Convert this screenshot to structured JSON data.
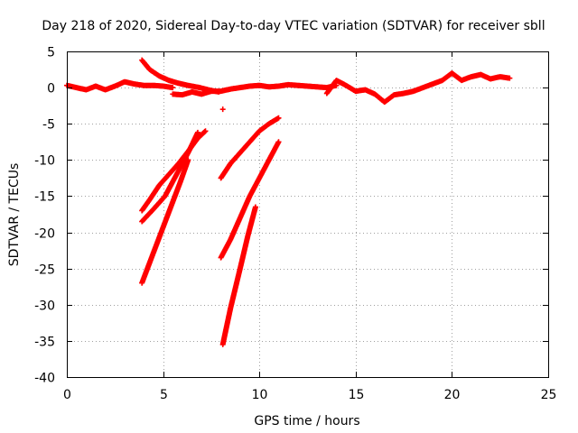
{
  "chart_data": {
    "type": "scatter",
    "title": "Day 218 of 2020, Sidereal Day-to-day VTEC variation (SDTVAR) for receiver sbll",
    "xlabel": "GPS time / hours",
    "ylabel": "SDTVAR / TECUs",
    "xlim": [
      0,
      25
    ],
    "ylim": [
      -40,
      5
    ],
    "xticks": [
      0,
      5,
      10,
      15,
      20,
      25
    ],
    "yticks": [
      5,
      0,
      -5,
      -10,
      -15,
      -20,
      -25,
      -30,
      -35,
      -40
    ],
    "xtick_labels": [
      "0",
      "5",
      "10",
      "15",
      "20",
      "25"
    ],
    "ytick_labels": [
      "5",
      "0",
      "-5",
      "-10",
      "-15",
      "-20",
      "-25",
      "-30",
      "-35",
      "-40"
    ],
    "grid": true,
    "marker": "plus",
    "color": "#ff0000",
    "series": [
      {
        "segments": [
          {
            "x": [
              0.0,
              0.5,
              1.0,
              1.5,
              2.0,
              2.5,
              3.0,
              3.5,
              4.0,
              4.5,
              5.0,
              5.5
            ],
            "y": [
              0.3,
              0.0,
              -0.3,
              0.2,
              -0.3,
              0.2,
              0.8,
              0.5,
              0.3,
              0.3,
              0.2,
              0.0
            ]
          },
          {
            "x": [
              5.5,
              6.0,
              6.5,
              7.0,
              7.5,
              8.0,
              8.5,
              9.0,
              9.5,
              10.0,
              10.5,
              11.0,
              11.5,
              12.0,
              12.5,
              13.0,
              13.5,
              14.0
            ],
            "y": [
              -0.9,
              -1.0,
              -0.6,
              -0.9,
              -0.5,
              -0.5,
              -0.2,
              0.0,
              0.2,
              0.3,
              0.1,
              0.2,
              0.4,
              0.3,
              0.2,
              0.1,
              0.0,
              0.3
            ]
          },
          {
            "x": [
              13.5,
              14.0,
              14.5,
              15.0,
              15.5,
              16.0,
              16.5,
              17.0,
              17.5,
              18.0,
              18.5,
              19.0,
              19.5,
              20.0,
              20.5,
              21.0,
              21.5,
              22.0,
              22.5,
              23.0
            ],
            "y": [
              -0.8,
              1.0,
              0.3,
              -0.5,
              -0.3,
              -0.9,
              -2.0,
              -1.0,
              -0.8,
              -0.5,
              0.0,
              0.5,
              1.0,
              2.0,
              1.0,
              1.5,
              1.8,
              1.2,
              1.5,
              1.3
            ]
          },
          {
            "x": [
              3.9,
              4.3,
              4.8,
              5.3,
              5.8,
              6.3,
              6.9,
              7.5,
              7.9
            ],
            "y": [
              3.8,
              2.5,
              1.6,
              1.0,
              0.6,
              0.3,
              0.0,
              -0.4,
              -0.6
            ]
          },
          {
            "x": [
              3.9,
              4.3,
              4.8,
              5.3,
              5.8,
              6.3,
              6.8,
              7.2
            ],
            "y": [
              -17.0,
              -15.5,
              -13.5,
              -12.0,
              -10.5,
              -8.8,
              -7.0,
              -6.0
            ]
          },
          {
            "x": [
              3.9,
              4.5,
              5.1,
              5.7,
              6.3,
              6.8
            ],
            "y": [
              -18.5,
              -16.8,
              -15.0,
              -12.0,
              -9.0,
              -6.2
            ]
          },
          {
            "x": [
              3.9,
              4.4,
              4.9,
              5.4,
              5.9,
              6.3
            ],
            "y": [
              -27.0,
              -23.5,
              -20.0,
              -16.5,
              -13.0,
              -10.0
            ]
          },
          {
            "x": [
              8.0,
              8.5,
              9.0,
              9.5,
              10.0,
              10.5,
              11.0
            ],
            "y": [
              -12.5,
              -10.5,
              -9.0,
              -7.5,
              -6.0,
              -5.0,
              -4.2
            ]
          },
          {
            "x": [
              8.0,
              8.5,
              9.0,
              9.5,
              10.0,
              10.5,
              11.0
            ],
            "y": [
              -23.5,
              -21.0,
              -18.0,
              -15.0,
              -12.5,
              -10.0,
              -7.5
            ]
          },
          {
            "x": [
              8.1,
              8.5,
              9.0,
              9.4,
              9.8
            ],
            "y": [
              -35.5,
              -30.5,
              -25.0,
              -20.5,
              -16.5
            ]
          },
          {
            "x": [
              8.1
            ],
            "y": [
              -3.0
            ]
          }
        ]
      }
    ]
  }
}
